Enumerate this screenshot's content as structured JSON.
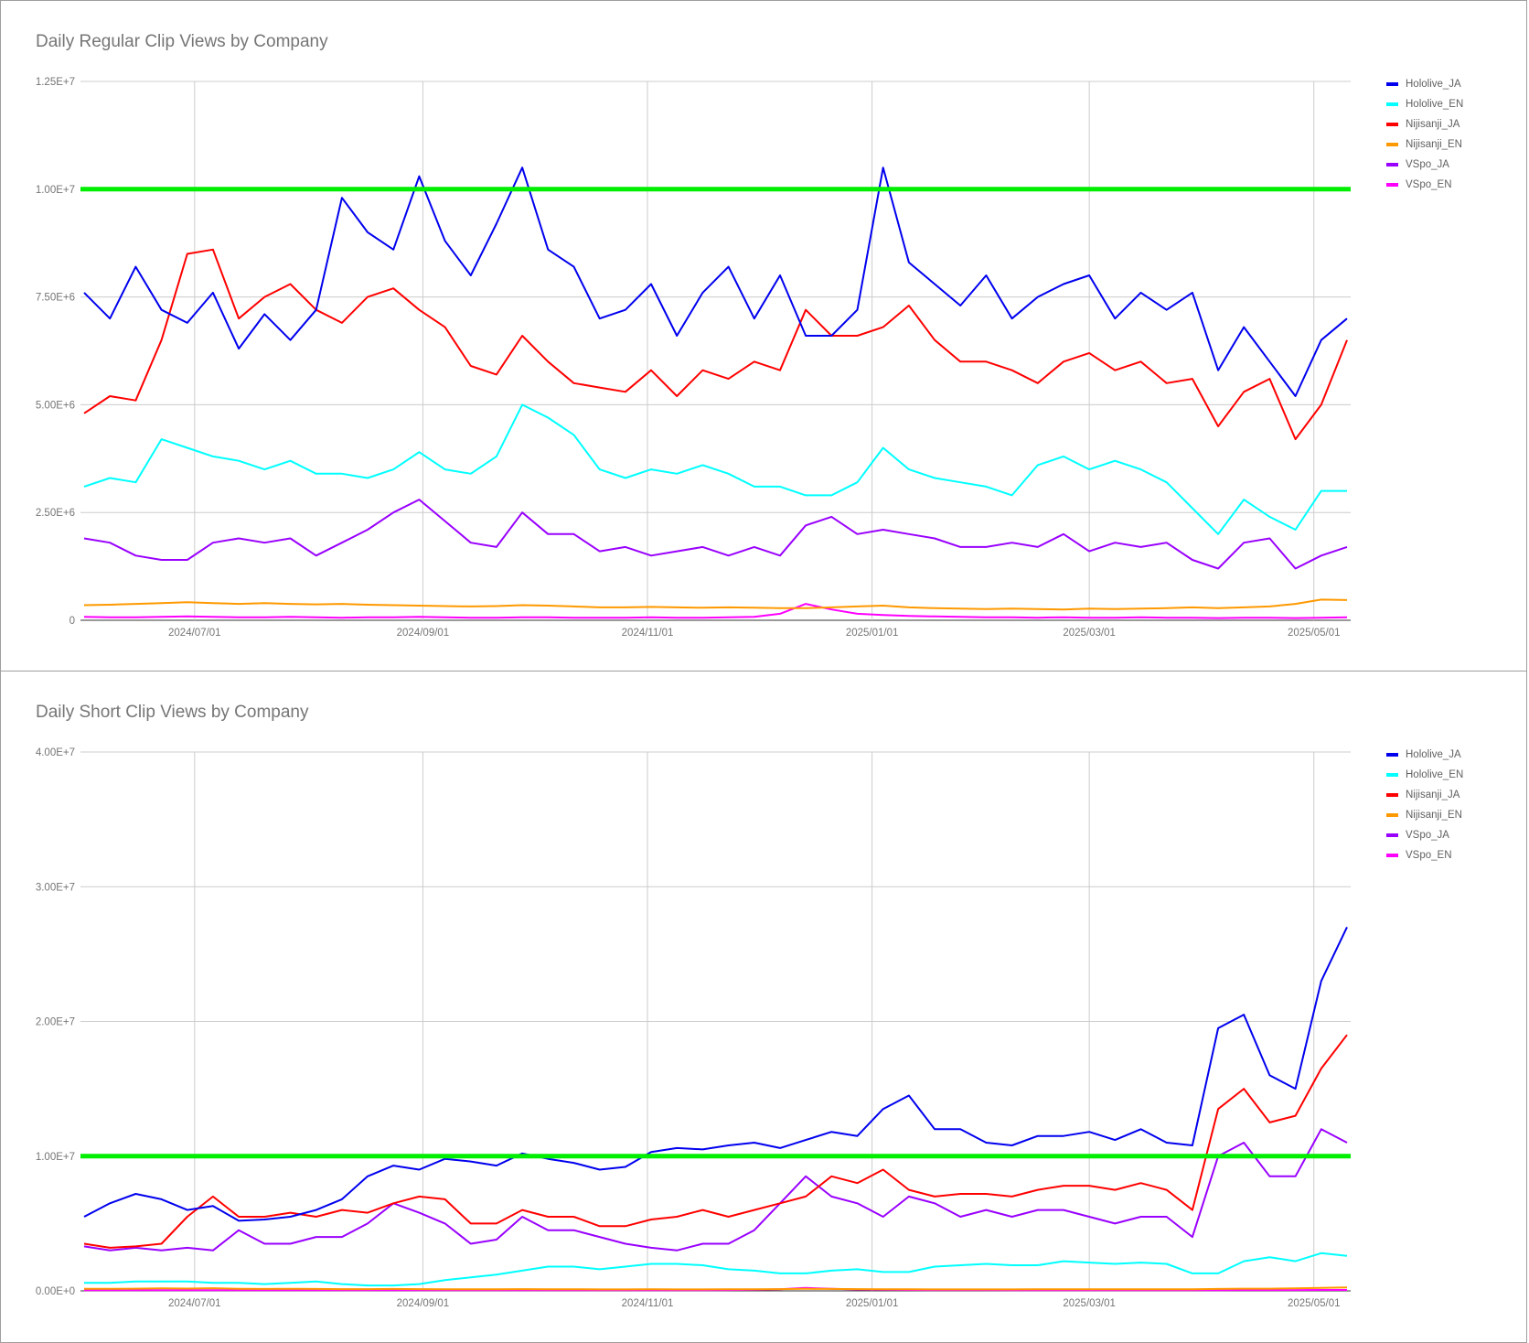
{
  "chart_data": [
    {
      "type": "line",
      "title": "Daily Regular Clip Views by Company",
      "xlabel": "",
      "ylabel": "",
      "x_start": "2024-06-01",
      "x_step_days": 7,
      "x_range": [
        "2024-05-31",
        "2025-05-11"
      ],
      "value_unit": 1000000,
      "ylim": [
        0,
        12500000
      ],
      "y_ticks": [
        {
          "v": 0,
          "label": "0"
        },
        {
          "v": 2500000,
          "label": "2.50E+6"
        },
        {
          "v": 5000000,
          "label": "5.00E+6"
        },
        {
          "v": 7500000,
          "label": "7.50E+6"
        },
        {
          "v": 10000000,
          "label": "1.00E+7"
        },
        {
          "v": 12500000,
          "label": "1.25E+7"
        }
      ],
      "x_ticks": [
        {
          "date": "2024-07-01",
          "label": "2024/07/01"
        },
        {
          "date": "2024-09-01",
          "label": "2024/09/01"
        },
        {
          "date": "2024-11-01",
          "label": "2024/11/01"
        },
        {
          "date": "2025-01-01",
          "label": "2025/01/01"
        },
        {
          "date": "2025-03-01",
          "label": "2025/03/01"
        },
        {
          "date": "2025-05-01",
          "label": "2025/05/01"
        }
      ],
      "reference_line": {
        "value": 10000000,
        "color": "#00ee00"
      },
      "grid": true,
      "legend_position": "right",
      "series": [
        {
          "name": "Hololive_JA",
          "color": "#0000ee",
          "values": [
            7.6,
            7.0,
            8.2,
            7.2,
            6.9,
            7.6,
            6.3,
            7.1,
            6.5,
            7.2,
            9.8,
            9.0,
            8.6,
            10.3,
            8.8,
            8.0,
            9.2,
            10.5,
            8.6,
            8.2,
            7.0,
            7.2,
            7.8,
            6.6,
            7.6,
            8.2,
            7.0,
            8.0,
            6.6,
            6.6,
            7.2,
            10.5,
            8.3,
            7.8,
            7.3,
            8.0,
            7.0,
            7.5,
            7.8,
            8.0,
            7.0,
            7.6,
            7.2,
            7.6,
            5.8,
            6.8,
            6.0,
            5.2,
            6.5,
            7.0
          ]
        },
        {
          "name": "Hololive_EN",
          "color": "#00ffff",
          "values": [
            3.1,
            3.3,
            3.2,
            4.2,
            4.0,
            3.8,
            3.7,
            3.5,
            3.7,
            3.4,
            3.4,
            3.3,
            3.5,
            3.9,
            3.5,
            3.4,
            3.8,
            5.0,
            4.7,
            4.3,
            3.5,
            3.3,
            3.5,
            3.4,
            3.6,
            3.4,
            3.1,
            3.1,
            2.9,
            2.9,
            3.2,
            4.0,
            3.5,
            3.3,
            3.2,
            3.1,
            2.9,
            3.6,
            3.8,
            3.5,
            3.7,
            3.5,
            3.2,
            2.6,
            2.0,
            2.8,
            2.4,
            2.1,
            3.0,
            3.0
          ]
        },
        {
          "name": "Nijisanji_JA",
          "color": "#ff0000",
          "values": [
            4.8,
            5.2,
            5.1,
            6.5,
            8.5,
            8.6,
            7.0,
            7.5,
            7.8,
            7.2,
            6.9,
            7.5,
            7.7,
            7.2,
            6.8,
            5.9,
            5.7,
            6.6,
            6.0,
            5.5,
            5.4,
            5.3,
            5.8,
            5.2,
            5.8,
            5.6,
            6.0,
            5.8,
            7.2,
            6.6,
            6.6,
            6.8,
            7.3,
            6.5,
            6.0,
            6.0,
            5.8,
            5.5,
            6.0,
            6.2,
            5.8,
            6.0,
            5.5,
            5.6,
            4.5,
            5.3,
            5.6,
            4.2,
            5.0,
            6.5
          ]
        },
        {
          "name": "Nijisanji_EN",
          "color": "#ff9900",
          "values": [
            0.35,
            0.36,
            0.38,
            0.4,
            0.42,
            0.4,
            0.38,
            0.4,
            0.38,
            0.37,
            0.38,
            0.36,
            0.35,
            0.34,
            0.33,
            0.32,
            0.33,
            0.35,
            0.34,
            0.32,
            0.3,
            0.3,
            0.31,
            0.3,
            0.29,
            0.3,
            0.29,
            0.28,
            0.28,
            0.3,
            0.32,
            0.34,
            0.3,
            0.28,
            0.27,
            0.26,
            0.27,
            0.26,
            0.25,
            0.27,
            0.26,
            0.27,
            0.28,
            0.3,
            0.28,
            0.3,
            0.32,
            0.38,
            0.48,
            0.47
          ]
        },
        {
          "name": "VSpo_JA",
          "color": "#9900ff",
          "values": [
            1.9,
            1.8,
            1.5,
            1.4,
            1.4,
            1.8,
            1.9,
            1.8,
            1.9,
            1.5,
            1.8,
            2.1,
            2.5,
            2.8,
            2.3,
            1.8,
            1.7,
            2.5,
            2.0,
            2.0,
            1.6,
            1.7,
            1.5,
            1.6,
            1.7,
            1.5,
            1.7,
            1.5,
            2.2,
            2.4,
            2.0,
            2.1,
            2.0,
            1.9,
            1.7,
            1.7,
            1.8,
            1.7,
            2.0,
            1.6,
            1.8,
            1.7,
            1.8,
            1.4,
            1.2,
            1.8,
            1.9,
            1.2,
            1.5,
            1.7
          ]
        },
        {
          "name": "VSpo_EN",
          "color": "#ff00ff",
          "values": [
            0.08,
            0.07,
            0.07,
            0.08,
            0.09,
            0.08,
            0.07,
            0.07,
            0.08,
            0.07,
            0.06,
            0.07,
            0.07,
            0.08,
            0.07,
            0.06,
            0.06,
            0.07,
            0.07,
            0.06,
            0.06,
            0.06,
            0.07,
            0.06,
            0.06,
            0.07,
            0.08,
            0.15,
            0.38,
            0.25,
            0.15,
            0.12,
            0.1,
            0.09,
            0.08,
            0.07,
            0.07,
            0.06,
            0.07,
            0.06,
            0.06,
            0.07,
            0.06,
            0.06,
            0.05,
            0.06,
            0.06,
            0.05,
            0.06,
            0.07
          ]
        }
      ]
    },
    {
      "type": "line",
      "title": "Daily Short Clip Views by Company",
      "xlabel": "",
      "ylabel": "",
      "x_start": "2024-06-01",
      "x_step_days": 7,
      "x_range": [
        "2024-05-31",
        "2025-05-11"
      ],
      "value_unit": 1000000,
      "ylim": [
        0,
        40000000
      ],
      "y_ticks": [
        {
          "v": 0,
          "label": "0.00E+0"
        },
        {
          "v": 10000000,
          "label": "1.00E+7"
        },
        {
          "v": 20000000,
          "label": "2.00E+7"
        },
        {
          "v": 30000000,
          "label": "3.00E+7"
        },
        {
          "v": 40000000,
          "label": "4.00E+7"
        }
      ],
      "x_ticks": [
        {
          "date": "2024-07-01",
          "label": "2024/07/01"
        },
        {
          "date": "2024-09-01",
          "label": "2024/09/01"
        },
        {
          "date": "2024-11-01",
          "label": "2024/11/01"
        },
        {
          "date": "2025-01-01",
          "label": "2025/01/01"
        },
        {
          "date": "2025-03-01",
          "label": "2025/03/01"
        },
        {
          "date": "2025-05-01",
          "label": "2025/05/01"
        }
      ],
      "reference_line": {
        "value": 10000000,
        "color": "#00ee00"
      },
      "grid": true,
      "legend_position": "right",
      "series": [
        {
          "name": "Hololive_JA",
          "color": "#0000ee",
          "values": [
            5.5,
            6.5,
            7.2,
            6.8,
            6.0,
            6.3,
            5.2,
            5.3,
            5.5,
            6.0,
            6.8,
            8.5,
            9.3,
            9.0,
            9.8,
            9.6,
            9.3,
            10.2,
            9.8,
            9.5,
            9.0,
            9.2,
            10.3,
            10.6,
            10.5,
            10.8,
            11.0,
            10.6,
            11.2,
            11.8,
            11.5,
            13.5,
            14.5,
            12.0,
            12.0,
            11.0,
            10.8,
            11.5,
            11.5,
            11.8,
            11.2,
            12.0,
            11.0,
            10.8,
            19.5,
            20.5,
            16.0,
            15.0,
            23.0,
            27.0
          ]
        },
        {
          "name": "Hololive_EN",
          "color": "#00ffff",
          "values": [
            0.6,
            0.6,
            0.7,
            0.7,
            0.7,
            0.6,
            0.6,
            0.5,
            0.6,
            0.7,
            0.5,
            0.4,
            0.4,
            0.5,
            0.8,
            1.0,
            1.2,
            1.5,
            1.8,
            1.8,
            1.6,
            1.8,
            2.0,
            2.0,
            1.9,
            1.6,
            1.5,
            1.3,
            1.3,
            1.5,
            1.6,
            1.4,
            1.4,
            1.8,
            1.9,
            2.0,
            1.9,
            1.9,
            2.2,
            2.1,
            2.0,
            2.1,
            2.0,
            1.3,
            1.3,
            2.2,
            2.5,
            2.2,
            2.8,
            2.6
          ]
        },
        {
          "name": "Nijisanji_JA",
          "color": "#ff0000",
          "values": [
            3.5,
            3.2,
            3.3,
            3.5,
            5.5,
            7.0,
            5.5,
            5.5,
            5.8,
            5.5,
            6.0,
            5.8,
            6.5,
            7.0,
            6.8,
            5.0,
            5.0,
            6.0,
            5.5,
            5.5,
            4.8,
            4.8,
            5.3,
            5.5,
            6.0,
            5.5,
            6.0,
            6.5,
            7.0,
            8.5,
            8.0,
            9.0,
            7.5,
            7.0,
            7.2,
            7.2,
            7.0,
            7.5,
            7.8,
            7.8,
            7.5,
            8.0,
            7.5,
            6.0,
            13.5,
            15.0,
            12.5,
            13.0,
            16.5,
            19.0
          ]
        },
        {
          "name": "Nijisanji_EN",
          "color": "#ff9900",
          "values": [
            0.15,
            0.15,
            0.16,
            0.18,
            0.17,
            0.2,
            0.15,
            0.14,
            0.15,
            0.14,
            0.13,
            0.13,
            0.14,
            0.13,
            0.12,
            0.12,
            0.12,
            0.13,
            0.12,
            0.12,
            0.11,
            0.11,
            0.12,
            0.11,
            0.11,
            0.12,
            0.12,
            0.13,
            0.15,
            0.14,
            0.13,
            0.12,
            0.12,
            0.11,
            0.11,
            0.11,
            0.11,
            0.12,
            0.12,
            0.12,
            0.12,
            0.12,
            0.12,
            0.12,
            0.14,
            0.16,
            0.16,
            0.18,
            0.22,
            0.25
          ]
        },
        {
          "name": "VSpo_JA",
          "color": "#9900ff",
          "values": [
            3.3,
            3.0,
            3.2,
            3.0,
            3.2,
            3.0,
            4.5,
            3.5,
            3.5,
            4.0,
            4.0,
            5.0,
            6.5,
            5.8,
            5.0,
            3.5,
            3.8,
            5.5,
            4.5,
            4.5,
            4.0,
            3.5,
            3.2,
            3.0,
            3.5,
            3.5,
            4.5,
            6.5,
            8.5,
            7.0,
            6.5,
            5.5,
            7.0,
            6.5,
            5.5,
            6.0,
            5.5,
            6.0,
            6.0,
            5.5,
            5.0,
            5.5,
            5.5,
            4.0,
            10.0,
            11.0,
            8.5,
            8.5,
            12.0,
            11.0
          ]
        },
        {
          "name": "VSpo_EN",
          "color": "#ff00ff",
          "values": [
            0.05,
            0.05,
            0.05,
            0.05,
            0.05,
            0.05,
            0.05,
            0.05,
            0.05,
            0.05,
            0.05,
            0.05,
            0.05,
            0.05,
            0.05,
            0.05,
            0.05,
            0.05,
            0.05,
            0.05,
            0.05,
            0.05,
            0.05,
            0.05,
            0.05,
            0.06,
            0.08,
            0.12,
            0.22,
            0.15,
            0.1,
            0.08,
            0.07,
            0.06,
            0.06,
            0.06,
            0.05,
            0.05,
            0.05,
            0.05,
            0.05,
            0.05,
            0.05,
            0.05,
            0.05,
            0.06,
            0.06,
            0.06,
            0.07,
            0.07
          ]
        }
      ]
    }
  ]
}
